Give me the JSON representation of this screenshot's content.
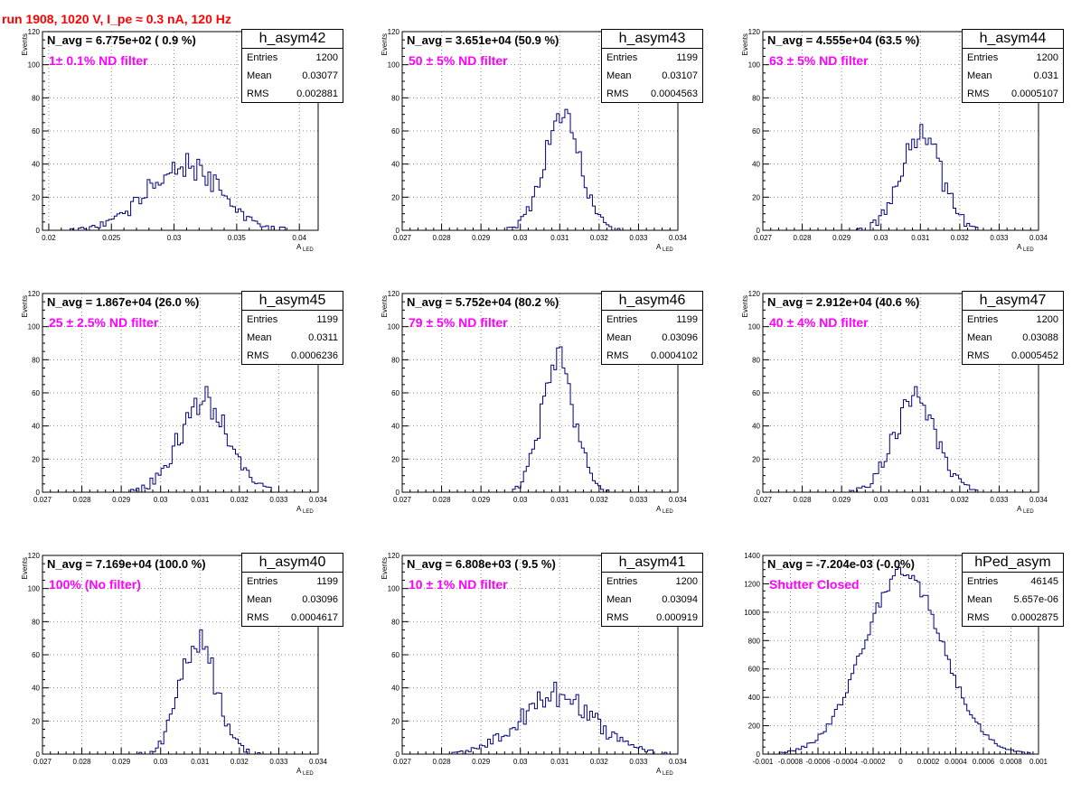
{
  "title": "run 1908,  1020 V, I_pe ≈ 0.3 nA, 120 Hz",
  "colors": {
    "title": "#ff0000",
    "filter_label": "#ff00ff",
    "histogram": "#000080",
    "grid": "#888888"
  },
  "chart_data": [
    {
      "type": "histogram",
      "name": "h_asym42",
      "n_avg": "N_avg = 6.775e+02 ( 0.9 %)",
      "filter": "1± 0.1% ND filter",
      "stats": {
        "entries": "1200",
        "mean": "0.03077",
        "rms": "0.002881"
      },
      "xlabel": "A_LED",
      "ylabel": "Events",
      "grid": true,
      "xlim": [
        0.0195,
        0.0415
      ],
      "ylim": [
        0,
        120
      ],
      "xticks": [
        "0.02",
        "0.025",
        "0.03",
        "0.035",
        "0.04"
      ],
      "yticks": [
        "0",
        "20",
        "40",
        "60",
        "80",
        "100",
        "120"
      ],
      "dist": {
        "mean": 0.03077,
        "sigma": 0.002881,
        "peak": 40
      }
    },
    {
      "type": "histogram",
      "name": "h_asym43",
      "n_avg": "N_avg = 3.651e+04 (50.9 %)",
      "filter": "50 ± 5% ND filter",
      "stats": {
        "entries": "1199",
        "mean": "0.03107",
        "rms": "0.0004563"
      },
      "xlabel": "A_LED",
      "ylabel": "Events",
      "grid": true,
      "xlim": [
        0.027,
        0.034
      ],
      "ylim": [
        0,
        120
      ],
      "xticks": [
        "0.027",
        "0.028",
        "0.029",
        "0.03",
        "0.031",
        "0.032",
        "0.033",
        "0.034"
      ],
      "yticks": [
        "0",
        "20",
        "40",
        "60",
        "80",
        "100",
        "120"
      ],
      "dist": {
        "mean": 0.03107,
        "sigma": 0.0004563,
        "peak": 70
      }
    },
    {
      "type": "histogram",
      "name": "h_asym44",
      "n_avg": "N_avg = 4.555e+04 (63.5 %)",
      "filter": "63 ± 5% ND filter",
      "stats": {
        "entries": "1200",
        "mean": "0.031",
        "rms": "0.0005107"
      },
      "xlabel": "A_LED",
      "ylabel": "Events",
      "grid": true,
      "xlim": [
        0.027,
        0.034
      ],
      "ylim": [
        0,
        120
      ],
      "xticks": [
        "0.027",
        "0.028",
        "0.029",
        "0.03",
        "0.031",
        "0.032",
        "0.033",
        "0.034"
      ],
      "yticks": [
        "0",
        "20",
        "40",
        "60",
        "80",
        "100",
        "120"
      ],
      "dist": {
        "mean": 0.031,
        "sigma": 0.0005107,
        "peak": 58
      }
    },
    {
      "type": "histogram",
      "name": "h_asym45",
      "n_avg": "N_avg = 1.867e+04 (26.0 %)",
      "filter": "25 ± 2.5% ND filter",
      "stats": {
        "entries": "1199",
        "mean": "0.0311",
        "rms": "0.0006236"
      },
      "xlabel": "A_LED",
      "ylabel": "Events",
      "grid": true,
      "xlim": [
        0.027,
        0.034
      ],
      "ylim": [
        0,
        120
      ],
      "xticks": [
        "0.027",
        "0.028",
        "0.029",
        "0.03",
        "0.031",
        "0.032",
        "0.033",
        "0.034"
      ],
      "yticks": [
        "0",
        "20",
        "40",
        "60",
        "80",
        "100",
        "120"
      ],
      "dist": {
        "mean": 0.0311,
        "sigma": 0.0006236,
        "peak": 56
      }
    },
    {
      "type": "histogram",
      "name": "h_asym46",
      "n_avg": "N_avg = 5.752e+04 (80.2 %)",
      "filter": "79 ± 5% ND filter",
      "stats": {
        "entries": "1199",
        "mean": "0.03096",
        "rms": "0.0004102"
      },
      "xlabel": "A_LED",
      "ylabel": "Events",
      "grid": true,
      "xlim": [
        0.027,
        0.034
      ],
      "ylim": [
        0,
        120
      ],
      "xticks": [
        "0.027",
        "0.028",
        "0.029",
        "0.03",
        "0.031",
        "0.032",
        "0.033",
        "0.034"
      ],
      "yticks": [
        "0",
        "20",
        "40",
        "60",
        "80",
        "100",
        "120"
      ],
      "dist": {
        "mean": 0.03096,
        "sigma": 0.0004102,
        "peak": 80
      }
    },
    {
      "type": "histogram",
      "name": "h_asym47",
      "n_avg": "N_avg = 2.912e+04 (40.6 %)",
      "filter": "40 ± 4% ND filter",
      "stats": {
        "entries": "1200",
        "mean": "0.03088",
        "rms": "0.0005452"
      },
      "xlabel": "A_LED",
      "ylabel": "Events",
      "grid": true,
      "xlim": [
        0.027,
        0.034
      ],
      "ylim": [
        0,
        120
      ],
      "xticks": [
        "0.027",
        "0.028",
        "0.029",
        "0.03",
        "0.031",
        "0.032",
        "0.033",
        "0.034"
      ],
      "yticks": [
        "0",
        "20",
        "40",
        "60",
        "80",
        "100",
        "120"
      ],
      "dist": {
        "mean": 0.03088,
        "sigma": 0.0005452,
        "peak": 57
      }
    },
    {
      "type": "histogram",
      "name": "h_asym40",
      "n_avg": "N_avg = 7.169e+04 (100.0 %)",
      "filter": "100% (No filter)",
      "stats": {
        "entries": "1199",
        "mean": "0.03096",
        "rms": "0.0004617"
      },
      "xlabel": "A_LED",
      "ylabel": "Events",
      "grid": true,
      "xlim": [
        0.027,
        0.034
      ],
      "ylim": [
        0,
        120
      ],
      "xticks": [
        "0.027",
        "0.028",
        "0.029",
        "0.03",
        "0.031",
        "0.032",
        "0.033",
        "0.034"
      ],
      "yticks": [
        "0",
        "20",
        "40",
        "60",
        "80",
        "100",
        "120"
      ],
      "dist": {
        "mean": 0.03096,
        "sigma": 0.0004617,
        "peak": 66
      }
    },
    {
      "type": "histogram",
      "name": "h_asym41",
      "n_avg": "N_avg = 6.808e+03 ( 9.5 %)",
      "filter": "10 ± 1% ND filter",
      "stats": {
        "entries": "1200",
        "mean": "0.03094",
        "rms": "0.000919"
      },
      "xlabel": "A_LED",
      "ylabel": "Events",
      "grid": true,
      "xlim": [
        0.027,
        0.034
      ],
      "ylim": [
        0,
        120
      ],
      "xticks": [
        "0.027",
        "0.028",
        "0.029",
        "0.03",
        "0.031",
        "0.032",
        "0.033",
        "0.034"
      ],
      "yticks": [
        "0",
        "20",
        "40",
        "60",
        "80",
        "100",
        "120"
      ],
      "dist": {
        "mean": 0.03094,
        "sigma": 0.000919,
        "peak": 36
      }
    },
    {
      "type": "histogram",
      "name": "hPed_asym",
      "n_avg": "N_avg = -7.204e-03 (-0.0%)",
      "filter": "Shutter Closed",
      "stats": {
        "entries": "46145",
        "mean": "5.657e-06",
        "rms": "0.0002875"
      },
      "xlabel": "",
      "ylabel": "",
      "grid": true,
      "xlim": [
        -0.001,
        0.001
      ],
      "ylim": [
        0,
        1400
      ],
      "xticks": [
        "-0.001",
        "-0.0008",
        "-0.0006",
        "-0.0004",
        "-0.0002",
        "0",
        "0.0002",
        "0.0004",
        "0.0006",
        "0.0008",
        "0.001"
      ],
      "yticks": [
        "0",
        "200",
        "400",
        "600",
        "800",
        "1000",
        "1200",
        "1400"
      ],
      "dist": {
        "mean": 2e-05,
        "sigma": 0.000285,
        "peak": 1280
      }
    }
  ]
}
